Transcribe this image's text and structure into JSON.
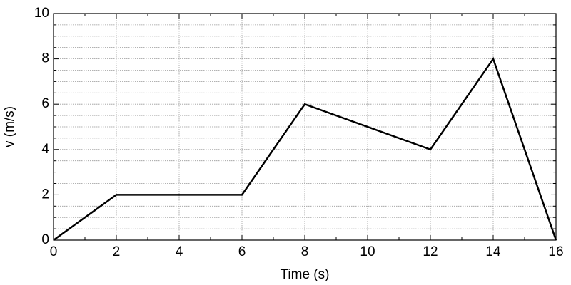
{
  "chart_data": {
    "type": "line",
    "x_label": "Time (s)",
    "y_label": "v (m/s)",
    "x": [
      0,
      2,
      6,
      8,
      12,
      14,
      16
    ],
    "series": [
      {
        "name": "v",
        "color": "#000000",
        "values": [
          0,
          2,
          2,
          6,
          4,
          8,
          0
        ]
      }
    ],
    "xlim": [
      0,
      16
    ],
    "ylim": [
      0,
      10
    ],
    "xticks": [
      0,
      2,
      4,
      6,
      8,
      10,
      12,
      14,
      16
    ],
    "yticks": [
      0,
      2,
      4,
      6,
      8,
      10
    ],
    "xminorticks": [
      1,
      3,
      5,
      7,
      9,
      11,
      13,
      15
    ],
    "yminorticks": [
      0.5,
      1,
      1.5,
      2.5,
      3,
      3.5,
      4.5,
      5,
      5.5,
      6.5,
      7,
      7.5,
      8.5,
      9,
      9.5
    ],
    "grid": true
  }
}
